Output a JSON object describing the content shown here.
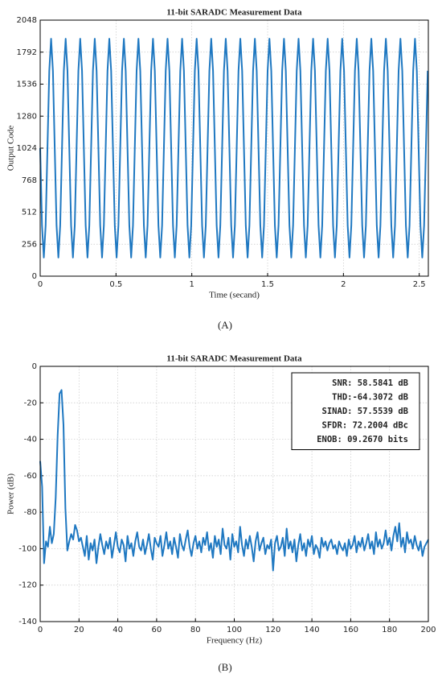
{
  "chart_data": [
    {
      "type": "line",
      "title": "11-bit SARADC Measurement Data",
      "xlabel": "Time (secand)",
      "ylabel": "Output Code",
      "caption": "(A)",
      "color": "#1f78c1",
      "grid": true,
      "xlim": [
        0,
        2.56
      ],
      "xticks": [
        0,
        0.5,
        1,
        1.5,
        2,
        2.5
      ],
      "ylim": [
        0,
        2048
      ],
      "yticks": [
        0,
        256,
        512,
        768,
        1024,
        1280,
        1536,
        1792,
        2048
      ],
      "x": [
        0,
        0.012,
        0.024,
        0.036,
        0.048,
        0.06,
        0.072,
        0.084,
        0.096,
        0.108,
        0.12,
        0.132,
        0.144,
        0.156,
        0.168,
        0.18,
        0.192,
        0.204,
        0.216,
        0.228,
        0.24,
        0.252,
        0.264,
        0.276,
        0.288,
        0.3,
        0.312,
        0.324,
        0.336,
        0.348,
        0.36,
        0.372,
        0.384,
        0.396,
        0.408,
        0.42,
        0.432,
        0.444,
        0.456,
        0.468,
        0.48,
        0.492,
        0.504,
        0.516,
        0.528,
        0.54,
        0.552,
        0.564,
        0.576,
        0.588,
        0.6,
        0.612,
        0.624,
        0.636,
        0.648,
        0.66,
        0.672,
        0.684,
        0.696,
        0.708,
        0.72,
        0.732,
        0.744,
        0.756,
        0.768,
        0.78,
        0.792,
        0.804,
        0.816,
        0.828,
        0.84,
        0.852,
        0.864,
        0.876,
        0.888,
        0.9,
        0.912,
        0.924,
        0.936,
        0.948,
        0.96,
        0.972,
        0.984,
        0.996,
        1.008,
        1.02,
        1.032,
        1.044,
        1.056,
        1.068,
        1.08,
        1.092,
        1.104,
        1.116,
        1.128,
        1.14,
        1.152,
        1.164,
        1.176,
        1.188,
        1.2,
        1.212,
        1.224,
        1.236,
        1.248,
        1.26,
        1.272,
        1.284,
        1.296,
        1.308,
        1.32,
        1.332,
        1.344,
        1.356,
        1.368,
        1.38,
        1.392,
        1.404,
        1.416,
        1.428,
        1.44,
        1.452,
        1.464,
        1.476,
        1.488,
        1.5,
        1.512,
        1.524,
        1.536,
        1.548,
        1.56,
        1.572,
        1.584,
        1.596,
        1.608,
        1.62,
        1.632,
        1.644,
        1.656,
        1.668,
        1.68,
        1.692,
        1.704,
        1.716,
        1.728,
        1.74,
        1.752,
        1.764,
        1.776,
        1.788,
        1.8,
        1.812,
        1.824,
        1.836,
        1.848,
        1.86,
        1.872,
        1.884,
        1.896,
        1.908,
        1.92,
        1.932,
        1.944,
        1.956,
        1.968,
        1.98,
        1.992,
        2.004,
        2.016,
        2.028,
        2.04,
        2.052,
        2.064,
        2.076,
        2.088,
        2.1,
        2.112,
        2.124,
        2.136,
        2.148,
        2.16,
        2.172,
        2.184,
        2.196,
        2.208,
        2.22,
        2.232,
        2.244,
        2.256,
        2.268,
        2.28,
        2.292,
        2.304,
        2.316,
        2.328,
        2.34,
        2.352,
        2.364,
        2.376,
        2.388,
        2.4,
        2.412,
        2.424,
        2.436,
        2.448,
        2.46,
        2.472,
        2.484,
        2.496,
        2.508,
        2.52,
        2.532,
        2.544,
        2.556
      ],
      "values": [
        1024,
        405,
        149,
        405,
        1024,
        1643,
        1899,
        1643,
        1024,
        405,
        149,
        405,
        1024,
        1643,
        1899,
        1643,
        1024,
        405,
        149,
        405,
        1024,
        1643,
        1899,
        1643,
        1024,
        405,
        149,
        405,
        1024,
        1643,
        1899,
        1643,
        1024,
        405,
        149,
        405,
        1024,
        1643,
        1899,
        1643,
        1024,
        405,
        149,
        405,
        1024,
        1643,
        1899,
        1643,
        1024,
        405,
        149,
        405,
        1024,
        1643,
        1899,
        1643,
        1024,
        405,
        149,
        405,
        1024,
        1643,
        1899,
        1643,
        1024,
        405,
        149,
        405,
        1024,
        1643,
        1899,
        1643,
        1024,
        405,
        149,
        405,
        1024,
        1643,
        1899,
        1643,
        1024,
        405,
        149,
        405,
        1024,
        1643,
        1899,
        1643,
        1024,
        405,
        149,
        405,
        1024,
        1643,
        1899,
        1643,
        1024,
        405,
        149,
        405,
        1024,
        1643,
        1899,
        1643,
        1024,
        405,
        149,
        405,
        1024,
        1643,
        1899,
        1643,
        1024,
        405,
        149,
        405,
        1024,
        1643,
        1899,
        1643,
        1024,
        405,
        149,
        405,
        1024,
        1643,
        1899,
        1643,
        1024,
        405,
        149,
        405,
        1024,
        1643,
        1899,
        1643,
        1024,
        405,
        149,
        405,
        1024,
        1643,
        1899,
        1643,
        1024,
        405,
        149,
        405,
        1024,
        1643,
        1899,
        1643,
        1024,
        405,
        149,
        405,
        1024,
        1643,
        1899,
        1643,
        1024,
        405,
        149,
        405,
        1024,
        1643,
        1899,
        1643,
        1024,
        405,
        149,
        405,
        1024,
        1643,
        1899,
        1643,
        1024,
        405,
        149,
        405,
        1024,
        1643,
        1899,
        1643,
        1024,
        405,
        149,
        405,
        1024,
        1643,
        1899,
        1643,
        1024,
        405,
        149,
        405,
        1024,
        1643,
        1899,
        1643,
        1024,
        405,
        149,
        405,
        1024,
        1643,
        1899,
        1643,
        1024,
        405,
        149,
        405,
        1024,
        1643
      ]
    },
    {
      "type": "line",
      "title": "11-bit SARADC Measurement Data",
      "xlabel": "Frequency (Hz)",
      "ylabel": "Power (dB)",
      "caption": "(B)",
      "color": "#1f78c1",
      "grid": true,
      "annotations": [
        "SNR: 58.5841 dB",
        "THD:-64.3072 dB",
        "SINAD: 57.5539 dB",
        "SFDR: 72.2004 dBc",
        "ENOB: 09.2670 bits"
      ],
      "xlim": [
        0,
        200
      ],
      "xticks": [
        0,
        20,
        40,
        60,
        80,
        100,
        120,
        140,
        160,
        180,
        200
      ],
      "ylim": [
        -140,
        0
      ],
      "yticks": [
        -140,
        -120,
        -100,
        -80,
        -60,
        -40,
        -20,
        0
      ],
      "x": [
        0,
        1,
        2,
        3,
        4,
        5,
        6,
        7,
        8,
        9,
        10,
        11,
        12,
        13,
        14,
        15,
        16,
        17,
        18,
        19,
        20,
        21,
        22,
        23,
        24,
        25,
        26,
        27,
        28,
        29,
        30,
        31,
        32,
        33,
        34,
        35,
        36,
        37,
        38,
        39,
        40,
        41,
        42,
        43,
        44,
        45,
        46,
        47,
        48,
        49,
        50,
        51,
        52,
        53,
        54,
        55,
        56,
        57,
        58,
        59,
        60,
        61,
        62,
        63,
        64,
        65,
        66,
        67,
        68,
        69,
        70,
        71,
        72,
        73,
        74,
        75,
        76,
        77,
        78,
        79,
        80,
        81,
        82,
        83,
        84,
        85,
        86,
        87,
        88,
        89,
        90,
        91,
        92,
        93,
        94,
        95,
        96,
        97,
        98,
        99,
        100,
        101,
        102,
        103,
        104,
        105,
        106,
        107,
        108,
        109,
        110,
        111,
        112,
        113,
        114,
        115,
        116,
        117,
        118,
        119,
        120,
        121,
        122,
        123,
        124,
        125,
        126,
        127,
        128,
        129,
        130,
        131,
        132,
        133,
        134,
        135,
        136,
        137,
        138,
        139,
        140,
        141,
        142,
        143,
        144,
        145,
        146,
        147,
        148,
        149,
        150,
        151,
        152,
        153,
        154,
        155,
        156,
        157,
        158,
        159,
        160,
        161,
        162,
        163,
        164,
        165,
        166,
        167,
        168,
        169,
        170,
        171,
        172,
        173,
        174,
        175,
        176,
        177,
        178,
        179,
        180,
        181,
        182,
        183,
        184,
        185,
        186,
        187,
        188,
        189,
        190,
        191,
        192,
        193,
        194,
        195,
        196,
        197,
        198,
        199,
        200
      ],
      "values": [
        -52,
        -66,
        -108,
        -96,
        -99,
        -88,
        -97,
        -92,
        -72,
        -38,
        -15,
        -13,
        -32,
        -78,
        -101,
        -96,
        -92,
        -95,
        -87,
        -90,
        -96,
        -94,
        -99,
        -104,
        -93,
        -106,
        -97,
        -101,
        -95,
        -108,
        -99,
        -92,
        -98,
        -103,
        -96,
        -100,
        -94,
        -105,
        -98,
        -91,
        -99,
        -102,
        -95,
        -98,
        -107,
        -93,
        -100,
        -97,
        -104,
        -96,
        -91,
        -99,
        -101,
        -95,
        -103,
        -98,
        -92,
        -100,
        -106,
        -94,
        -97,
        -99,
        -93,
        -104,
        -98,
        -91,
        -100,
        -96,
        -103,
        -94,
        -99,
        -105,
        -92,
        -98,
        -101,
        -95,
        -90,
        -99,
        -104,
        -97,
        -93,
        -100,
        -96,
        -102,
        -94,
        -98,
        -91,
        -101,
        -97,
        -105,
        -93,
        -99,
        -95,
        -103,
        -89,
        -98,
        -100,
        -94,
        -106,
        -92,
        -99,
        -96,
        -102,
        -88,
        -98,
        -104,
        -95,
        -100,
        -93,
        -99,
        -107,
        -96,
        -91,
        -101,
        -97,
        -94,
        -103,
        -98,
        -100,
        -95,
        -112,
        -97,
        -93,
        -101,
        -99,
        -94,
        -104,
        -89,
        -100,
        -96,
        -102,
        -95,
        -107,
        -98,
        -92,
        -101,
        -97,
        -104,
        -95,
        -99,
        -93,
        -103,
        -98,
        -100,
        -105,
        -94,
        -99,
        -96,
        -101,
        -97,
        -95,
        -100,
        -98,
        -103,
        -96,
        -99,
        -101,
        -97,
        -104,
        -95,
        -100,
        -98,
        -93,
        -102,
        -96,
        -99,
        -94,
        -101,
        -97,
        -92,
        -100,
        -96,
        -103,
        -91,
        -99,
        -95,
        -100,
        -97,
        -90,
        -98,
        -94,
        -101,
        -93,
        -88,
        -96,
        -86,
        -99,
        -94,
        -102,
        -91,
        -97,
        -95,
        -100,
        -93,
        -98,
        -101,
        -96,
        -104,
        -99,
        -97,
        -95
      ]
    }
  ]
}
